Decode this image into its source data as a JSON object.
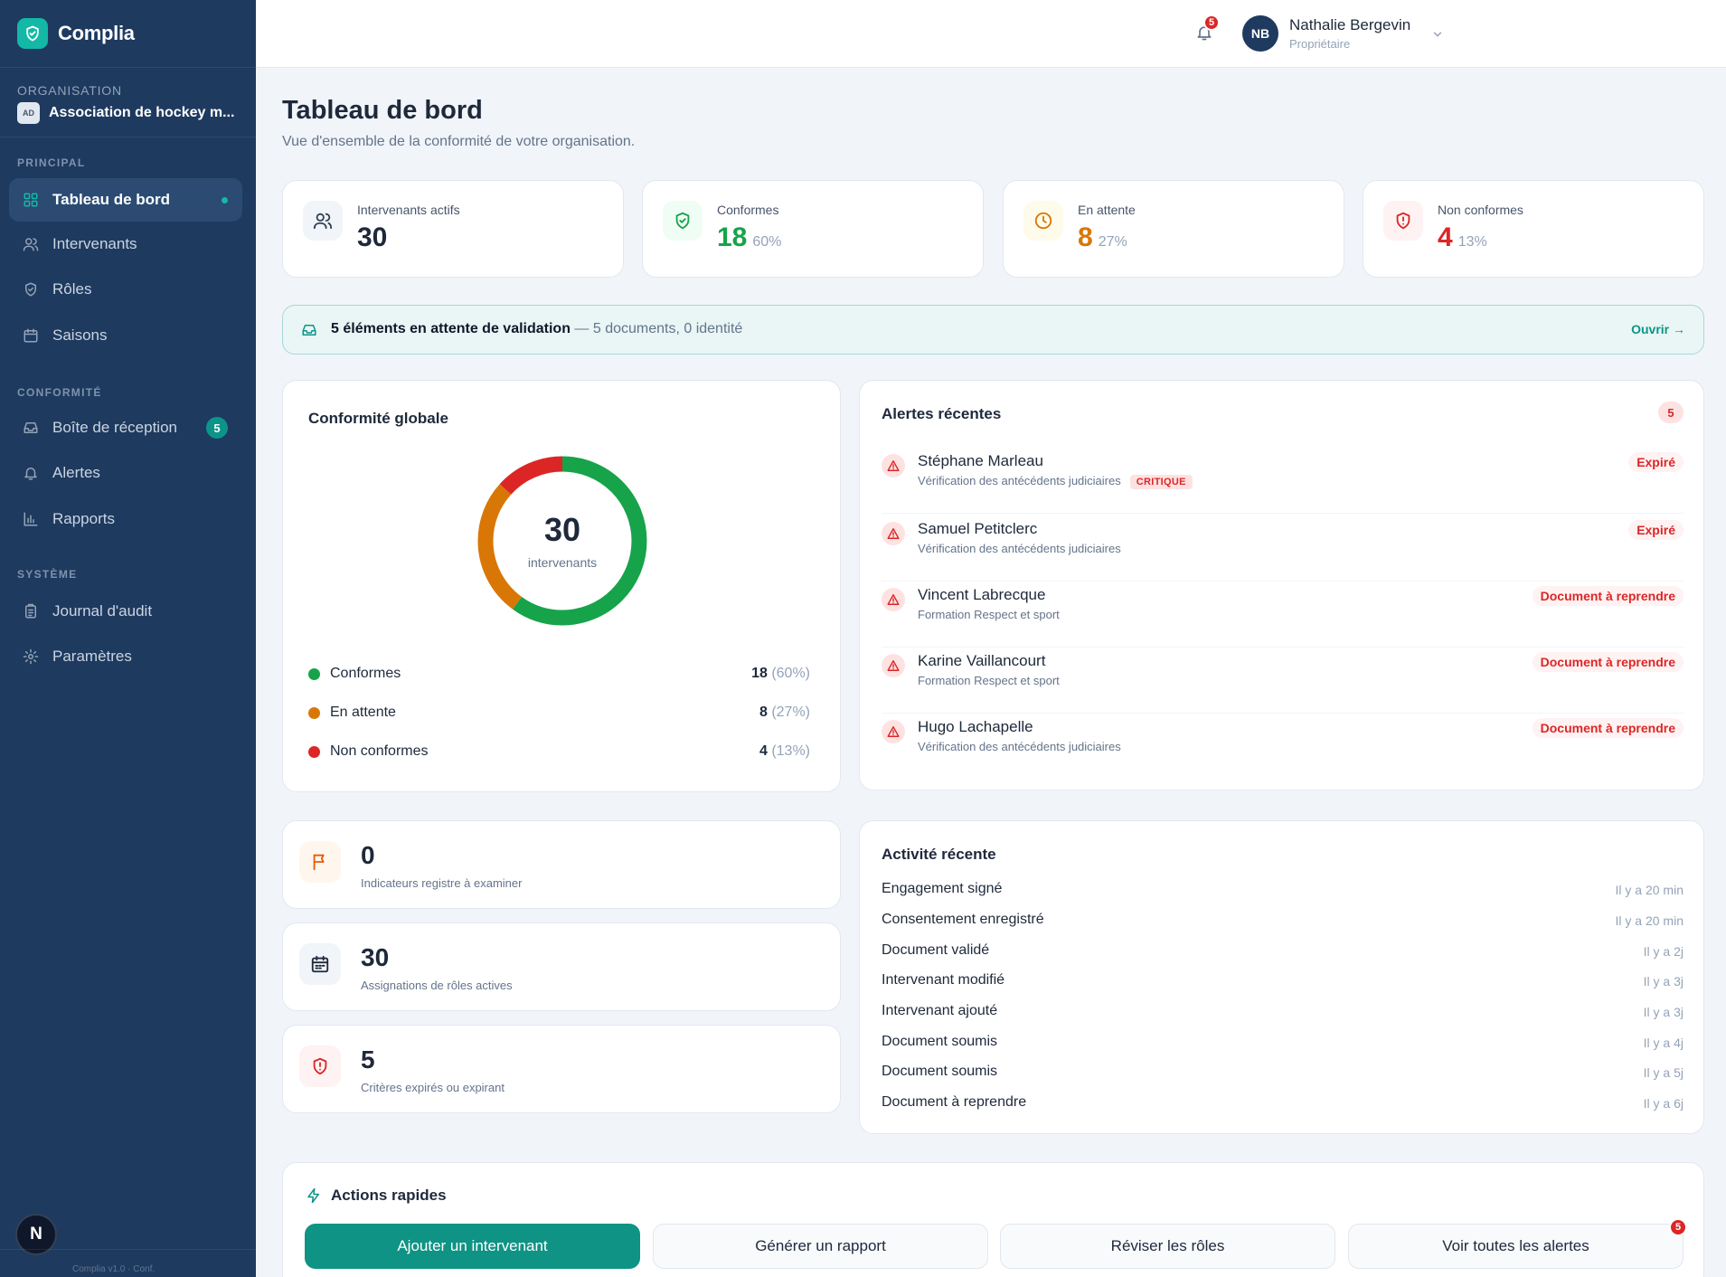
{
  "app": {
    "name": "Complia"
  },
  "organization": {
    "label": "ORGANISATION",
    "badge": "AD",
    "name": "Association de hockey m..."
  },
  "sidebar": {
    "sections": [
      {
        "label": "PRINCIPAL"
      },
      {
        "label": "CONFORMITÉ"
      },
      {
        "label": "SYSTÈME"
      }
    ],
    "items": [
      {
        "label": "Tableau de bord",
        "icon": "grid-icon",
        "active": true
      },
      {
        "label": "Intervenants",
        "icon": "users-icon"
      },
      {
        "label": "Rôles",
        "icon": "shield-icon"
      },
      {
        "label": "Saisons",
        "icon": "calendar-icon"
      },
      {
        "label": "Boîte de réception",
        "icon": "inbox-icon",
        "badge": "5"
      },
      {
        "label": "Alertes",
        "icon": "bell-icon"
      },
      {
        "label": "Rapports",
        "icon": "bar-chart-icon"
      },
      {
        "label": "Journal d'audit",
        "icon": "clipboard-icon"
      },
      {
        "label": "Paramètres",
        "icon": "gear-icon"
      }
    ],
    "footer_avatar": "N",
    "footer_text": "Complia v1.0 · Conf."
  },
  "topbar": {
    "notifications_count": "5",
    "user": {
      "initials": "NB",
      "name": "Nathalie Bergevin",
      "role": "Propriétaire"
    }
  },
  "page": {
    "title": "Tableau de bord",
    "subtitle": "Vue d'ensemble de la conformité de votre organisation."
  },
  "stats": [
    {
      "label": "Intervenants actifs",
      "value": "30",
      "pct": "",
      "color": "#1e293b"
    },
    {
      "label": "Conformes",
      "value": "18",
      "pct": "60%",
      "color": "#16a34a"
    },
    {
      "label": "En attente",
      "value": "8",
      "pct": "27%",
      "color": "#d97706"
    },
    {
      "label": "Non conformes",
      "value": "4",
      "pct": "13%",
      "color": "#dc2626"
    }
  ],
  "banner": {
    "bold": "5 éléments en attente de validation",
    "detail": " — 5 documents, 0 identité",
    "link": "Ouvrir →"
  },
  "compliance": {
    "title": "Conformité globale",
    "total": "30",
    "total_label": "intervenants",
    "segments": [
      {
        "label": "Conformes",
        "count": "18",
        "pct": "(60%)",
        "value": 18,
        "color": "#16a34a"
      },
      {
        "label": "En attente",
        "count": "8",
        "pct": "(27%)",
        "value": 8,
        "color": "#d97706"
      },
      {
        "label": "Non conformes",
        "count": "4",
        "pct": "(13%)",
        "value": 4,
        "color": "#dc2626"
      }
    ]
  },
  "alerts": {
    "title": "Alertes récentes",
    "count": "5",
    "items": [
      {
        "name": "Stéphane Marleau",
        "desc": "Vérification des antécédents judiciaires",
        "tag": "CRITIQUE",
        "status": "Expiré"
      },
      {
        "name": "Samuel Petitclerc",
        "desc": "Vérification des antécédents judiciaires",
        "tag": "",
        "status": "Expiré"
      },
      {
        "name": "Vincent Labrecque",
        "desc": "Formation Respect et sport",
        "tag": "",
        "status": "Document à reprendre"
      },
      {
        "name": "Karine Vaillancourt",
        "desc": "Formation Respect et sport",
        "tag": "",
        "status": "Document à reprendre"
      },
      {
        "name": "Hugo Lachapelle",
        "desc": "Vérification des antécédents judiciaires",
        "tag": "",
        "status": "Document à reprendre"
      }
    ]
  },
  "mini_stats": [
    {
      "value": "0",
      "label": "Indicateurs registre à examiner",
      "icon": "flag-icon"
    },
    {
      "value": "30",
      "label": "Assignations de rôles actives",
      "icon": "calendar-icon"
    },
    {
      "value": "5",
      "label": "Critères expirés ou expirant",
      "icon": "shield-alert-icon"
    }
  ],
  "activity": {
    "title": "Activité récente",
    "items": [
      {
        "label": "Engagement signé",
        "time": "Il y a 20 min"
      },
      {
        "label": "Consentement enregistré",
        "time": "Il y a 20 min"
      },
      {
        "label": "Document validé",
        "time": "Il y a 2j"
      },
      {
        "label": "Intervenant modifié",
        "time": "Il y a 3j"
      },
      {
        "label": "Intervenant ajouté",
        "time": "Il y a 3j"
      },
      {
        "label": "Document soumis",
        "time": "Il y a 4j"
      },
      {
        "label": "Document soumis",
        "time": "Il y a 5j"
      },
      {
        "label": "Document à reprendre",
        "time": "Il y a 6j"
      }
    ]
  },
  "quick_actions": {
    "title": "Actions rapides",
    "buttons": [
      {
        "label": "Ajouter un intervenant"
      },
      {
        "label": "Générer un rapport"
      },
      {
        "label": "Réviser les rôles"
      },
      {
        "label": "Voir toutes les alertes",
        "badge": "5"
      }
    ]
  }
}
